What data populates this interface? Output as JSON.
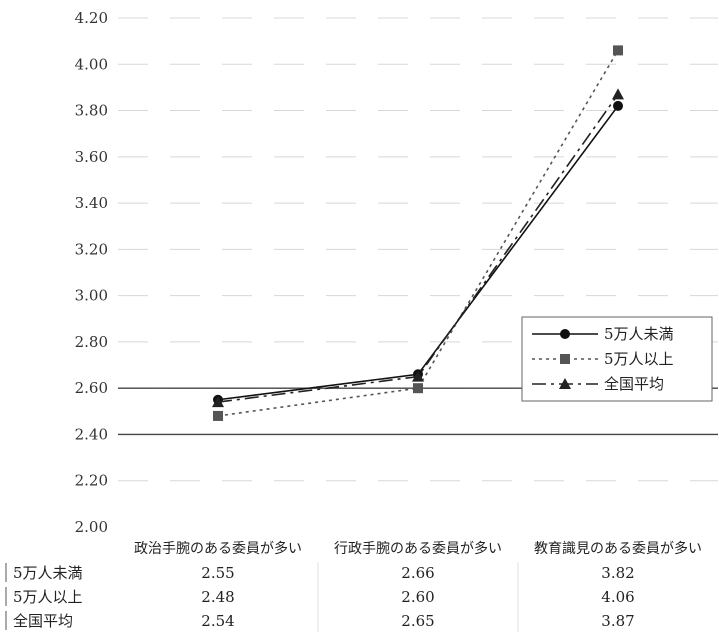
{
  "chart_data": {
    "type": "line",
    "title": "",
    "xlabel": "",
    "ylabel": "",
    "categories": [
      "政治手腕のある委員が多い",
      "行政手腕のある委員が多い",
      "教育識見のある委員が多い"
    ],
    "ylim": [
      2.0,
      4.2
    ],
    "yticks": [
      "2.00",
      "2.20",
      "2.40",
      "2.60",
      "2.80",
      "3.00",
      "3.20",
      "3.40",
      "3.60",
      "3.80",
      "4.00",
      "4.20"
    ],
    "legend_position": "right",
    "grid": true,
    "series": [
      {
        "name": "5万人未満",
        "marker": "circle",
        "style": "solid",
        "color": "#111111",
        "values": [
          2.55,
          2.66,
          3.82
        ],
        "labels": [
          "2.55",
          "2.66",
          "3.82"
        ]
      },
      {
        "name": "5万人以上",
        "marker": "square",
        "style": "dotted",
        "color": "#555555",
        "values": [
          2.48,
          2.6,
          4.06
        ],
        "labels": [
          "2.48",
          "2.60",
          "4.06"
        ]
      },
      {
        "name": "全国平均",
        "marker": "triangle",
        "style": "dashdot",
        "color": "#222222",
        "values": [
          2.54,
          2.65,
          3.87
        ],
        "labels": [
          "2.54",
          "2.65",
          "3.87"
        ]
      }
    ]
  }
}
